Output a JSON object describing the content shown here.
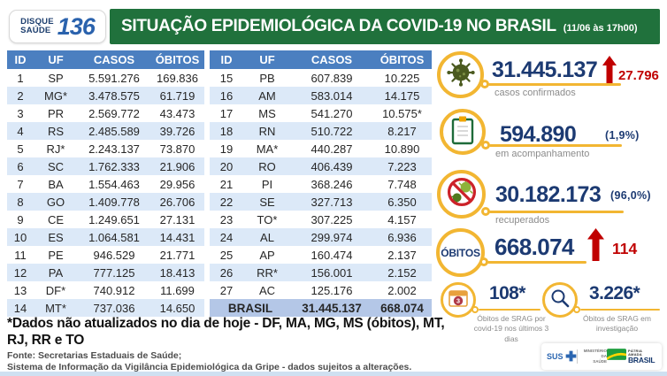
{
  "header": {
    "logo_line1": "DISQUE",
    "logo_line2": "SAÚDE",
    "logo_number": "136",
    "title": "SITUAÇÃO EPIDEMIOLÓGICA DA COVID-19 NO BRASIL",
    "timestamp": "(11/06 às 17h00)"
  },
  "table_headers": [
    "ID",
    "UF",
    "CASOS",
    "ÓBITOS"
  ],
  "table1_rows": [
    [
      "1",
      "SP",
      "5.591.276",
      "169.836"
    ],
    [
      "2",
      "MG*",
      "3.478.575",
      "61.719"
    ],
    [
      "3",
      "PR",
      "2.569.772",
      "43.473"
    ],
    [
      "4",
      "RS",
      "2.485.589",
      "39.726"
    ],
    [
      "5",
      "RJ*",
      "2.243.137",
      "73.870"
    ],
    [
      "6",
      "SC",
      "1.762.333",
      "21.906"
    ],
    [
      "7",
      "BA",
      "1.554.463",
      "29.956"
    ],
    [
      "8",
      "GO",
      "1.409.778",
      "26.706"
    ],
    [
      "9",
      "CE",
      "1.249.651",
      "27.131"
    ],
    [
      "10",
      "ES",
      "1.064.581",
      "14.431"
    ],
    [
      "11",
      "PE",
      "946.529",
      "21.771"
    ],
    [
      "12",
      "PA",
      "777.125",
      "18.413"
    ],
    [
      "13",
      "DF*",
      "740.912",
      "11.699"
    ],
    [
      "14",
      "MT*",
      "737.036",
      "14.650"
    ]
  ],
  "table2_rows": [
    [
      "15",
      "PB",
      "607.839",
      "10.225"
    ],
    [
      "16",
      "AM",
      "583.014",
      "14.175"
    ],
    [
      "17",
      "MS",
      "541.270",
      "10.575*"
    ],
    [
      "18",
      "RN",
      "510.722",
      "8.217"
    ],
    [
      "19",
      "MA*",
      "440.287",
      "10.890"
    ],
    [
      "20",
      "RO",
      "406.439",
      "7.223"
    ],
    [
      "21",
      "PI",
      "368.246",
      "7.748"
    ],
    [
      "22",
      "SE",
      "327.713",
      "6.350"
    ],
    [
      "23",
      "TO*",
      "307.225",
      "4.157"
    ],
    [
      "24",
      "AL",
      "299.974",
      "6.936"
    ],
    [
      "25",
      "AP",
      "160.474",
      "2.137"
    ],
    [
      "26",
      "RR*",
      "156.001",
      "2.152"
    ],
    [
      "27",
      "AC",
      "125.176",
      "2.002"
    ]
  ],
  "total_row": {
    "label": "BRASIL",
    "casos": "31.445.137",
    "obitos": "668.074"
  },
  "stats": {
    "confirmed": {
      "icon": "virus-icon",
      "value": "31.445.137",
      "delta": "27.796",
      "label": "casos confirmados"
    },
    "monitoring": {
      "icon": "clipboard-icon",
      "value": "594.890",
      "pct": "(1,9%)",
      "label": "em acompanhamento"
    },
    "recovered": {
      "icon": "no-virus-icon",
      "value": "30.182.173",
      "pct": "(96,0%)",
      "label": "recuperados"
    },
    "deaths": {
      "circle_label": "ÓBITOS",
      "value": "668.074",
      "delta": "114"
    },
    "srag_deaths": {
      "icon": "calendar-icon",
      "value": "108*",
      "label": "Óbitos de SRAG por covid-19 nos últimos 3 dias"
    },
    "srag_investigation": {
      "icon": "search-icon",
      "value": "3.226*",
      "label": "Óbitos de SRAG em investigação"
    }
  },
  "footnote": "*Dados não atualizados no dia de hoje - DF, MA, MG, MS (óbitos), MT, RJ, RR e TO",
  "source": {
    "line1": "Fonte: Secretarias Estaduais de Saúde;",
    "line2": "Sistema de Informação da Vigilância Epidemiológica da Gripe - dados sujeitos a alterações."
  },
  "logos": {
    "sus": "SUS",
    "ministry_line1": "MINISTÉRIO DA",
    "ministry_line2": "SAÚDE",
    "patria_line1": "PÁTRIA AMADA",
    "patria_line2": "BRASIL"
  },
  "colors": {
    "green": "#20713c",
    "tableblue": "#4b7fc0",
    "altblue": "#dce9f8",
    "totalblue": "#b4c7e7",
    "navy": "#1c3a72",
    "red": "#c00000",
    "gold": "#f2b632",
    "strip": "#cfe0f1"
  }
}
